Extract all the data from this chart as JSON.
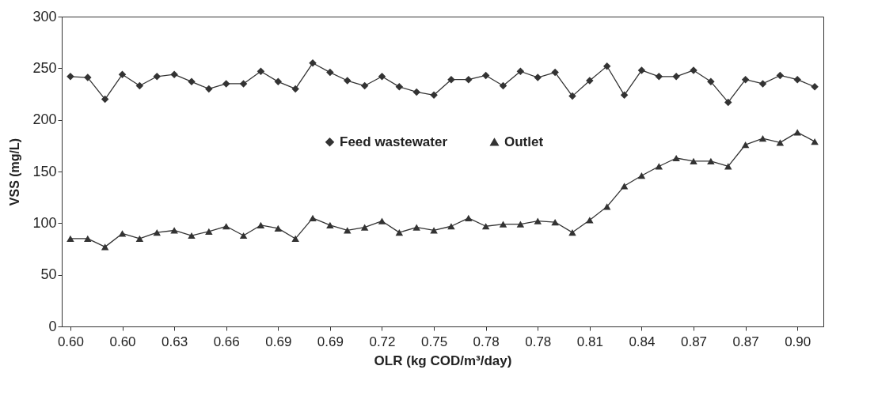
{
  "chart_data": {
    "type": "line",
    "xlabel": "OLR  (kg COD/m³/day)",
    "ylabel": "VSS (mg/L)",
    "categories": [
      "0.60",
      null,
      null,
      "0.60",
      null,
      null,
      "0.63",
      null,
      null,
      "0.66",
      null,
      null,
      "0.69",
      null,
      null,
      "0.69",
      null,
      null,
      "0.72",
      null,
      null,
      "0.75",
      null,
      null,
      "0.78",
      null,
      null,
      "0.78",
      null,
      null,
      "0.81",
      null,
      null,
      "0.84",
      null,
      null,
      "0.87",
      null,
      null,
      "0.87",
      null,
      null,
      "0.90",
      null
    ],
    "series": [
      {
        "name": "Feed wastewater",
        "color": "#333333",
        "marker": "diamond",
        "values": [
          242,
          241,
          220,
          244,
          233,
          242,
          244,
          237,
          230,
          235,
          235,
          247,
          237,
          230,
          255,
          246,
          238,
          233,
          242,
          232,
          227,
          224,
          239,
          239,
          243,
          233,
          247,
          241,
          246,
          223,
          238,
          252,
          224,
          248,
          242,
          242,
          248,
          237,
          217,
          239,
          235,
          243,
          239,
          232
        ]
      },
      {
        "name": "Outlet",
        "color": "#333333",
        "marker": "triangle",
        "values": [
          85,
          85,
          77,
          90,
          85,
          91,
          93,
          88,
          92,
          97,
          88,
          98,
          95,
          85,
          105,
          98,
          93,
          96,
          102,
          91,
          96,
          93,
          97,
          105,
          97,
          99,
          99,
          102,
          101,
          91,
          103,
          116,
          136,
          146,
          155,
          163,
          160,
          160,
          155,
          176,
          182,
          178,
          188,
          179
        ]
      }
    ],
    "ylim": [
      0,
      300
    ],
    "yticks": [
      0,
      50,
      100,
      150,
      200,
      250,
      300
    ],
    "grid": false,
    "legend": "center",
    "line_style": "solid"
  }
}
